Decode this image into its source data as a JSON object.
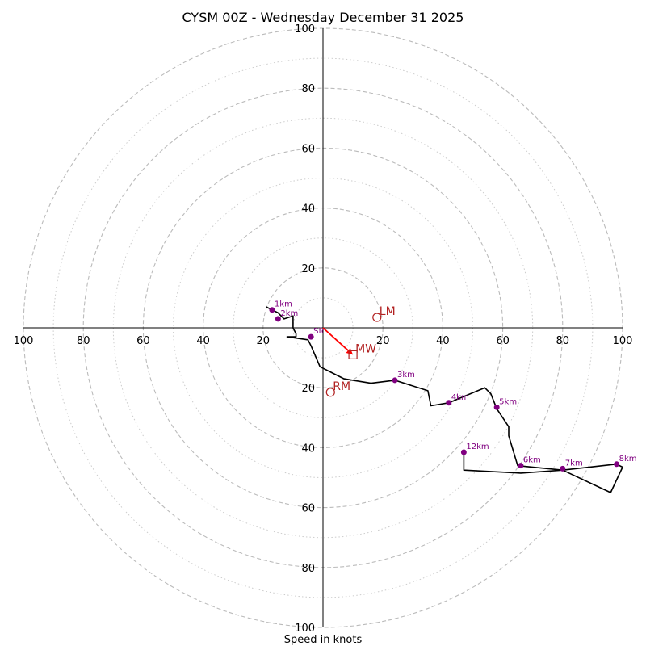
{
  "chart_data": {
    "type": "hodograph",
    "title": "CYSM 00Z - Wednesday December 31 2025",
    "xlabel": "Speed in knots",
    "range": [
      -100,
      100
    ],
    "ring_major": [
      20,
      40,
      60,
      80,
      100
    ],
    "ring_minor": [
      10,
      30,
      50,
      70,
      90
    ],
    "ticks": {
      "left": [
        {
          "value": -100,
          "label": "100"
        },
        {
          "value": -80,
          "label": "80"
        },
        {
          "value": -60,
          "label": "60"
        },
        {
          "value": -40,
          "label": "40"
        },
        {
          "value": -20,
          "label": "20"
        }
      ],
      "right": [
        {
          "value": 20,
          "label": "20"
        },
        {
          "value": 40,
          "label": "40"
        },
        {
          "value": 60,
          "label": "60"
        },
        {
          "value": 80,
          "label": "80"
        },
        {
          "value": 100,
          "label": "100"
        }
      ],
      "top": [
        {
          "value": 20,
          "label": "20"
        },
        {
          "value": 40,
          "label": "40"
        },
        {
          "value": 60,
          "label": "60"
        },
        {
          "value": 80,
          "label": "80"
        },
        {
          "value": 100,
          "label": "100"
        }
      ],
      "bottom": [
        {
          "value": -20,
          "label": "20"
        },
        {
          "value": -40,
          "label": "40"
        },
        {
          "value": -60,
          "label": "60"
        },
        {
          "value": -80,
          "label": "80"
        },
        {
          "value": -100,
          "label": "100"
        }
      ]
    },
    "trace": [
      [
        -19,
        7
      ],
      [
        -15,
        5
      ],
      [
        -13,
        3
      ],
      [
        -10,
        4
      ],
      [
        -10,
        0
      ],
      [
        -9,
        -2
      ],
      [
        -9,
        -3
      ],
      [
        -12,
        -3
      ],
      [
        -5,
        -4
      ],
      [
        -4,
        -6
      ],
      [
        -1,
        -13
      ],
      [
        3,
        -15
      ],
      [
        7,
        -17
      ],
      [
        10,
        -17.5
      ],
      [
        16,
        -18.5
      ],
      [
        24,
        -17.5
      ],
      [
        35,
        -21
      ],
      [
        36,
        -26
      ],
      [
        42,
        -25
      ],
      [
        54,
        -20
      ],
      [
        56,
        -22
      ],
      [
        58,
        -27
      ],
      [
        62,
        -33
      ],
      [
        62,
        -36
      ],
      [
        65,
        -46
      ],
      [
        80,
        -47.5
      ],
      [
        98,
        -45.5
      ],
      [
        100,
        -46.5
      ],
      [
        96,
        -55
      ],
      [
        80,
        -47.5
      ],
      [
        66,
        -48.5
      ],
      [
        47,
        -47.5
      ],
      [
        47,
        -42
      ]
    ],
    "heights": [
      {
        "label": "1km",
        "u": -17,
        "v": 6
      },
      {
        "label": "2km",
        "u": -15,
        "v": 3
      },
      {
        "label": "3km",
        "u": 24,
        "v": -17.5
      },
      {
        "label": "4km",
        "u": 42,
        "v": -25
      },
      {
        "label": "5km",
        "u": 58,
        "v": -26.5
      },
      {
        "label": "6km",
        "u": 66,
        "v": -46
      },
      {
        "label": "7km",
        "u": 80,
        "v": -47
      },
      {
        "label": "8km",
        "u": 98,
        "v": -45.5
      },
      {
        "label": "12km",
        "u": 47,
        "v": -41.5
      },
      {
        "label": "Sfc",
        "u": -4,
        "v": -3
      }
    ],
    "motions": [
      {
        "label": "LM",
        "u": 18,
        "v": 3.5,
        "marker": "circle"
      },
      {
        "label": "RM",
        "u": 2.5,
        "v": -21.5,
        "marker": "circle"
      },
      {
        "label": "MW",
        "u": 10,
        "v": -9,
        "marker": "square"
      }
    ],
    "colors": {
      "grid": "#bbbbbb",
      "axis": "#000000",
      "trace": "#000000",
      "height_marker": "#800080",
      "motion": "#b22222",
      "mean_wind_arrow": "#ff0000"
    }
  }
}
